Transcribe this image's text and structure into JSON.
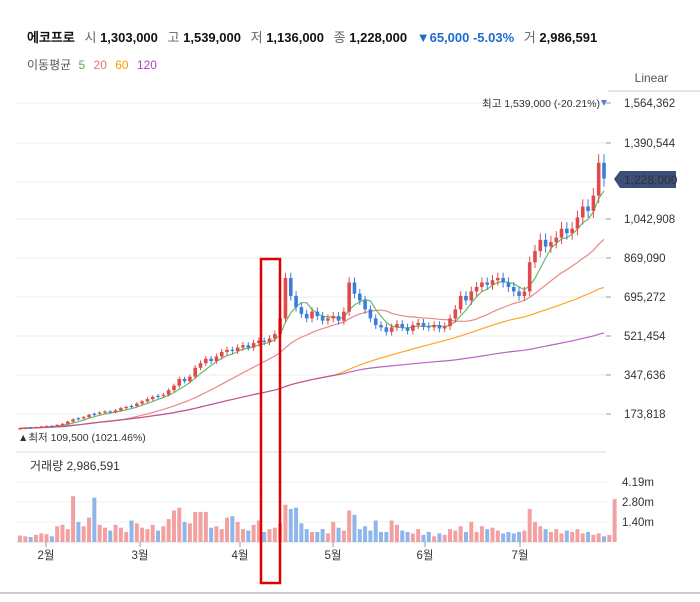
{
  "header": {
    "name": "에코프로",
    "open_label": "시",
    "open": "1,303,000",
    "high_label": "고",
    "high": "1,539,000",
    "low_label": "저",
    "low": "1,136,000",
    "close_label": "종",
    "close": "1,228,000",
    "change": "▼65,000 -5.03%",
    "volume_label": "거",
    "volume": "2,986,591"
  },
  "moving_average": {
    "label": "이동평균",
    "periods": [
      {
        "value": "5",
        "color": "#4caf50"
      },
      {
        "value": "20",
        "color": "#e57373"
      },
      {
        "value": "60",
        "color": "#ff9800"
      },
      {
        "value": "120",
        "color": "#ab47bc"
      }
    ]
  },
  "scale_label": "Linear",
  "annotations": {
    "max_label": "최고 1,539,000 (-20.21%)",
    "min_label": "▲최저 109,500 (1021.46%)",
    "current_price": "1,228,000",
    "volume_label": "거래량 2,986,591"
  },
  "chart_data": {
    "type": "candlestick",
    "price_axis": {
      "ticks": [
        "1,564,362",
        "1,390,544",
        "1,042,908",
        "869,090",
        "695,272",
        "521,454",
        "347,636",
        "173,818"
      ]
    },
    "volume_axis": {
      "ticks": [
        "4.19m",
        "2.80m",
        "1.40m"
      ]
    },
    "x_ticks": [
      "2월",
      "3월",
      "4월",
      "5월",
      "6월",
      "7월"
    ],
    "highlight": "4월 상순",
    "price_series": [
      {
        "close": 110000,
        "up": true
      },
      {
        "close": 112000,
        "up": true
      },
      {
        "close": 113000,
        "up": false
      },
      {
        "close": 115000,
        "up": true
      },
      {
        "close": 118000,
        "up": true
      },
      {
        "close": 120000,
        "up": true
      },
      {
        "close": 121000,
        "up": false
      },
      {
        "close": 125000,
        "up": true
      },
      {
        "close": 130000,
        "up": true
      },
      {
        "close": 140000,
        "up": true
      },
      {
        "close": 150000,
        "up": true
      },
      {
        "close": 155000,
        "up": false
      },
      {
        "close": 160000,
        "up": true
      },
      {
        "close": 170000,
        "up": true
      },
      {
        "close": 175000,
        "up": false
      },
      {
        "close": 180000,
        "up": true
      },
      {
        "close": 185000,
        "up": true
      },
      {
        "close": 182000,
        "up": false
      },
      {
        "close": 190000,
        "up": true
      },
      {
        "close": 200000,
        "up": true
      },
      {
        "close": 205000,
        "up": true
      },
      {
        "close": 210000,
        "up": false
      },
      {
        "close": 220000,
        "up": true
      },
      {
        "close": 230000,
        "up": true
      },
      {
        "close": 240000,
        "up": true
      },
      {
        "close": 250000,
        "up": true
      },
      {
        "close": 255000,
        "up": false
      },
      {
        "close": 260000,
        "up": true
      },
      {
        "close": 280000,
        "up": true
      },
      {
        "close": 300000,
        "up": true
      },
      {
        "close": 330000,
        "up": true
      },
      {
        "close": 320000,
        "up": false
      },
      {
        "close": 340000,
        "up": true
      },
      {
        "close": 380000,
        "up": true
      },
      {
        "close": 400000,
        "up": true
      },
      {
        "close": 420000,
        "up": true
      },
      {
        "close": 410000,
        "up": false
      },
      {
        "close": 430000,
        "up": true
      },
      {
        "close": 450000,
        "up": true
      },
      {
        "close": 460000,
        "up": true
      },
      {
        "close": 455000,
        "up": false
      },
      {
        "close": 470000,
        "up": true
      },
      {
        "close": 480000,
        "up": true
      },
      {
        "close": 470000,
        "up": false
      },
      {
        "close": 490000,
        "up": true
      },
      {
        "close": 500000,
        "up": true
      },
      {
        "close": 495000,
        "up": false
      },
      {
        "close": 510000,
        "up": true
      },
      {
        "close": 530000,
        "up": true
      },
      {
        "close": 600000,
        "up": true
      },
      {
        "close": 780000,
        "up": true
      },
      {
        "close": 700000,
        "up": false
      },
      {
        "close": 650000,
        "up": false
      },
      {
        "close": 620000,
        "up": false
      },
      {
        "close": 600000,
        "up": false
      },
      {
        "close": 630000,
        "up": true
      },
      {
        "close": 610000,
        "up": false
      },
      {
        "close": 590000,
        "up": false
      },
      {
        "close": 600000,
        "up": true
      },
      {
        "close": 610000,
        "up": true
      },
      {
        "close": 590000,
        "up": false
      },
      {
        "close": 630000,
        "up": true
      },
      {
        "close": 760000,
        "up": true
      },
      {
        "close": 710000,
        "up": false
      },
      {
        "close": 680000,
        "up": false
      },
      {
        "close": 640000,
        "up": false
      },
      {
        "close": 600000,
        "up": false
      },
      {
        "close": 570000,
        "up": false
      },
      {
        "close": 560000,
        "up": false
      },
      {
        "close": 540000,
        "up": false
      },
      {
        "close": 560000,
        "up": true
      },
      {
        "close": 575000,
        "up": true
      },
      {
        "close": 560000,
        "up": false
      },
      {
        "close": 545000,
        "up": false
      },
      {
        "close": 570000,
        "up": true
      },
      {
        "close": 580000,
        "up": true
      },
      {
        "close": 565000,
        "up": false
      },
      {
        "close": 560000,
        "up": false
      },
      {
        "close": 570000,
        "up": true
      },
      {
        "close": 555000,
        "up": false
      },
      {
        "close": 565000,
        "up": true
      },
      {
        "close": 600000,
        "up": true
      },
      {
        "close": 640000,
        "up": true
      },
      {
        "close": 700000,
        "up": true
      },
      {
        "close": 680000,
        "up": false
      },
      {
        "close": 720000,
        "up": true
      },
      {
        "close": 740000,
        "up": true
      },
      {
        "close": 760000,
        "up": true
      },
      {
        "close": 750000,
        "up": false
      },
      {
        "close": 770000,
        "up": true
      },
      {
        "close": 780000,
        "up": true
      },
      {
        "close": 760000,
        "up": false
      },
      {
        "close": 740000,
        "up": false
      },
      {
        "close": 720000,
        "up": false
      },
      {
        "close": 700000,
        "up": false
      },
      {
        "close": 720000,
        "up": true
      },
      {
        "close": 850000,
        "up": true
      },
      {
        "close": 900000,
        "up": true
      },
      {
        "close": 950000,
        "up": true
      },
      {
        "close": 920000,
        "up": false
      },
      {
        "close": 940000,
        "up": true
      },
      {
        "close": 960000,
        "up": true
      },
      {
        "close": 1000000,
        "up": true
      },
      {
        "close": 980000,
        "up": false
      },
      {
        "close": 1000000,
        "up": true
      },
      {
        "close": 1050000,
        "up": true
      },
      {
        "close": 1100000,
        "up": true
      },
      {
        "close": 1080000,
        "up": false
      },
      {
        "close": 1150000,
        "up": true
      },
      {
        "close": 1300000,
        "up": true
      },
      {
        "close": 1228000,
        "up": false
      }
    ],
    "volume_series": [
      0.45,
      0.4,
      0.35,
      0.5,
      0.6,
      0.55,
      0.4,
      1.1,
      1.2,
      0.9,
      3.2,
      1.4,
      1.1,
      1.7,
      3.1,
      1.2,
      1.0,
      0.8,
      1.2,
      1.0,
      0.7,
      1.5,
      1.3,
      1.0,
      0.9,
      1.2,
      0.8,
      1.1,
      1.6,
      2.2,
      2.4,
      1.4,
      1.3,
      2.1,
      2.1,
      2.1,
      1.0,
      1.1,
      0.9,
      1.7,
      1.8,
      1.4,
      0.9,
      0.8,
      1.2,
      1.5,
      0.7,
      0.9,
      1.0,
      1.3,
      2.6,
      2.3,
      2.4,
      1.3,
      0.9,
      0.7,
      0.7,
      0.9,
      0.6,
      1.4,
      1.0,
      0.8,
      2.2,
      1.9,
      0.9,
      1.1,
      0.8,
      1.5,
      0.7,
      0.7,
      1.5,
      1.2,
      0.8,
      0.7,
      0.6,
      0.9,
      0.5,
      0.7,
      0.4,
      0.6,
      0.5,
      0.9,
      0.8,
      1.1,
      0.7,
      1.4,
      0.7,
      1.1,
      0.9,
      1.0,
      0.8,
      0.6,
      0.7,
      0.6,
      0.7,
      0.8,
      2.3,
      1.4,
      1.1,
      0.9,
      0.7,
      0.9,
      0.6,
      0.8,
      0.7,
      0.9,
      0.6,
      0.7,
      0.5,
      0.6,
      0.4,
      0.5,
      2.99
    ]
  }
}
